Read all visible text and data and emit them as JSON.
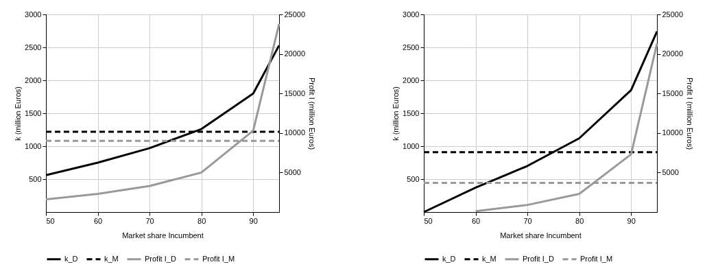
{
  "chart_data": [
    {
      "type": "line",
      "xlabel": "Market share Incumbent",
      "ylabel": "k (million Euros)",
      "y2label": "Profit I (million Euros)",
      "x": [
        50,
        60,
        70,
        80,
        90,
        95
      ],
      "xlim": [
        50,
        95
      ],
      "xticks": [
        50,
        60,
        70,
        80,
        90
      ],
      "ylim": [
        0,
        3000
      ],
      "yticks": [
        500,
        1000,
        1500,
        2000,
        2500,
        3000
      ],
      "y2lim": [
        0,
        25000
      ],
      "y2ticks": [
        5000,
        10000,
        15000,
        20000,
        25000
      ],
      "grid": true,
      "legend": "bottom",
      "marker": "none",
      "series": [
        {
          "name": "k_D",
          "color": "#000000",
          "line_style": "solid",
          "values": [
            560,
            750,
            970,
            1260,
            1800,
            2530
          ]
        },
        {
          "name": "k_M",
          "color": "#000000",
          "line_style": "dashed",
          "values": [
            1220,
            1220,
            1220,
            1220,
            1220,
            1220
          ]
        },
        {
          "name": "Profit I_D",
          "color": "#999999",
          "line_style": "solid",
          "axis": "y2",
          "values": [
            1600,
            2300,
            3300,
            5000,
            10300,
            23800
          ]
        },
        {
          "name": "Profit I_M",
          "color": "#999999",
          "line_style": "dashed",
          "axis": "y2",
          "values": [
            9000,
            9000,
            9000,
            9000,
            9000,
            9000
          ]
        }
      ]
    },
    {
      "type": "line",
      "xlabel": "Market share Incumbent",
      "ylabel": "k (million Euros)",
      "y2label": "Profit I (million Euros)",
      "x": [
        50,
        60,
        70,
        80,
        90,
        95
      ],
      "xlim": [
        50,
        95
      ],
      "xticks": [
        50,
        60,
        70,
        80,
        90
      ],
      "ylim": [
        0,
        3000
      ],
      "yticks": [
        500,
        1000,
        1500,
        2000,
        2500,
        3000
      ],
      "y2lim": [
        0,
        25000
      ],
      "y2ticks": [
        5000,
        10000,
        15000,
        20000,
        25000
      ],
      "grid": true,
      "legend": "bottom",
      "marker": "none",
      "series": [
        {
          "name": "k_D",
          "color": "#000000",
          "line_style": "solid",
          "values": [
            0,
            370,
            700,
            1120,
            1850,
            2740
          ]
        },
        {
          "name": "k_M",
          "color": "#000000",
          "line_style": "dashed",
          "values": [
            910,
            910,
            910,
            910,
            910,
            910
          ]
        },
        {
          "name": "Profit I_D",
          "color": "#999999",
          "line_style": "solid",
          "axis": "y2",
          "values": [
            null,
            100,
            900,
            2300,
            7300,
            21300
          ]
        },
        {
          "name": "Profit I_M",
          "color": "#999999",
          "line_style": "dashed",
          "axis": "y2",
          "values": [
            3700,
            3700,
            3700,
            3700,
            3700,
            3700
          ]
        }
      ]
    }
  ]
}
